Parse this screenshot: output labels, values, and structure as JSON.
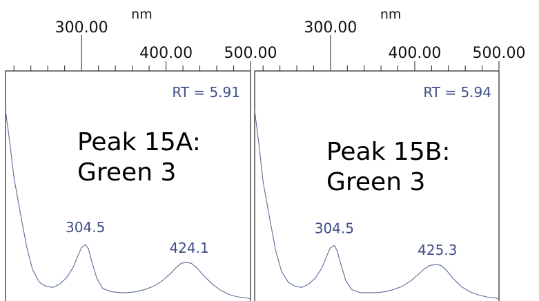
{
  "colors": {
    "text": "#111111",
    "annotation": "#3d4f86",
    "spectrum": "#5a6b96",
    "frame": "#222222"
  },
  "chart_data": [
    {
      "type": "line",
      "title_lines": [
        "Peak 15A:",
        "Green 3"
      ],
      "annotation": "RT = 5.91",
      "x_unit": "nm",
      "xlim": [
        210,
        500
      ],
      "ylim": [
        0,
        1
      ],
      "major_ticks": [
        300,
        400,
        500
      ],
      "tick_labels": [
        "300.00",
        "400.00",
        "500.00"
      ],
      "minor_tick_step": 20,
      "x": [
        210,
        215,
        220,
        228,
        235,
        242,
        250,
        258,
        266,
        274,
        282,
        290,
        296,
        300,
        304.5,
        308,
        312,
        318,
        325,
        335,
        345,
        355,
        365,
        375,
        385,
        395,
        405,
        412,
        418,
        424.1,
        430,
        436,
        445,
        455,
        465,
        475,
        485,
        495,
        500
      ],
      "y": [
        0.9,
        0.75,
        0.58,
        0.4,
        0.25,
        0.14,
        0.08,
        0.06,
        0.055,
        0.07,
        0.1,
        0.15,
        0.21,
        0.245,
        0.26,
        0.24,
        0.18,
        0.1,
        0.05,
        0.035,
        0.03,
        0.03,
        0.035,
        0.045,
        0.06,
        0.085,
        0.12,
        0.15,
        0.17,
        0.175,
        0.17,
        0.15,
        0.11,
        0.07,
        0.04,
        0.02,
        0.01,
        0.005,
        0.0
      ],
      "peaks": [
        {
          "x": 304.5,
          "label": "304.5"
        },
        {
          "x": 424.1,
          "label": "424.1"
        }
      ]
    },
    {
      "type": "line",
      "title_lines": [
        "Peak 15B:",
        "Green 3"
      ],
      "annotation": "RT = 5.94",
      "x_unit": "nm",
      "xlim": [
        210,
        500
      ],
      "ylim": [
        0,
        1
      ],
      "major_ticks": [
        300,
        400,
        500
      ],
      "tick_labels": [
        "300.00",
        "400.00",
        "500.00"
      ],
      "minor_tick_step": 20,
      "x": [
        210,
        215,
        220,
        228,
        235,
        242,
        250,
        258,
        266,
        274,
        282,
        290,
        296,
        300,
        304.5,
        308,
        312,
        318,
        325,
        335,
        345,
        355,
        365,
        375,
        385,
        395,
        405,
        412,
        418,
        425.3,
        431,
        437,
        445,
        455,
        465,
        475,
        485,
        495,
        500
      ],
      "y": [
        0.9,
        0.74,
        0.56,
        0.38,
        0.23,
        0.13,
        0.08,
        0.06,
        0.055,
        0.07,
        0.1,
        0.15,
        0.21,
        0.245,
        0.255,
        0.23,
        0.17,
        0.09,
        0.045,
        0.03,
        0.03,
        0.03,
        0.035,
        0.045,
        0.06,
        0.085,
        0.12,
        0.145,
        0.16,
        0.165,
        0.16,
        0.14,
        0.1,
        0.06,
        0.035,
        0.02,
        0.01,
        0.005,
        0.0
      ],
      "peaks": [
        {
          "x": 304.5,
          "label": "304.5"
        },
        {
          "x": 425.3,
          "label": "425.3"
        }
      ]
    }
  ]
}
